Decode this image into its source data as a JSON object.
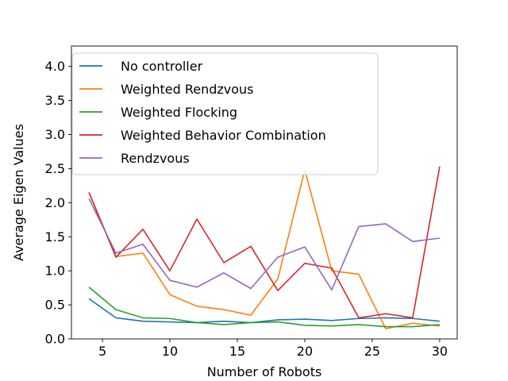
{
  "chart_data": {
    "type": "line",
    "title": "",
    "xlabel": "Number of Robots",
    "ylabel": "Average Eigen Values",
    "xlim": [
      2.7,
      31.3
    ],
    "ylim": [
      0.0,
      4.3
    ],
    "xticks": [
      5,
      10,
      15,
      20,
      25,
      30
    ],
    "yticks": [
      0.0,
      0.5,
      1.0,
      1.5,
      2.0,
      2.5,
      3.0,
      3.5,
      4.0
    ],
    "grid": false,
    "legend_position": "top-left",
    "x": [
      4,
      6,
      8,
      10,
      12,
      14,
      16,
      18,
      20,
      22,
      24,
      26,
      28,
      30
    ],
    "series": [
      {
        "name": "No controller",
        "color": "#1f77b4",
        "values": [
          0.59,
          0.31,
          0.26,
          0.25,
          0.24,
          0.26,
          0.24,
          0.28,
          0.29,
          0.27,
          0.3,
          0.31,
          0.3,
          0.26
        ]
      },
      {
        "name": "Weighted Rendzvous",
        "color": "#ff7f0e",
        "values": [
          2.15,
          1.21,
          1.26,
          0.65,
          0.48,
          0.43,
          0.35,
          0.88,
          2.48,
          1.0,
          0.95,
          0.15,
          0.23,
          0.19
        ]
      },
      {
        "name": "Weighted Flocking",
        "color": "#2ca02c",
        "values": [
          0.76,
          0.43,
          0.31,
          0.3,
          0.24,
          0.21,
          0.24,
          0.25,
          0.2,
          0.19,
          0.21,
          0.18,
          0.18,
          0.21
        ]
      },
      {
        "name": "Weighted Behavior Combination",
        "color": "#d62728",
        "values": [
          2.15,
          1.2,
          1.61,
          1.0,
          1.76,
          1.12,
          1.36,
          0.71,
          1.11,
          1.04,
          0.31,
          0.37,
          0.31,
          2.53
        ]
      },
      {
        "name": "Rendzvous",
        "color": "#9467bd",
        "values": [
          2.06,
          1.26,
          1.39,
          0.86,
          0.76,
          0.97,
          0.74,
          1.2,
          1.35,
          0.72,
          1.65,
          1.69,
          1.43,
          1.48
        ]
      }
    ]
  }
}
